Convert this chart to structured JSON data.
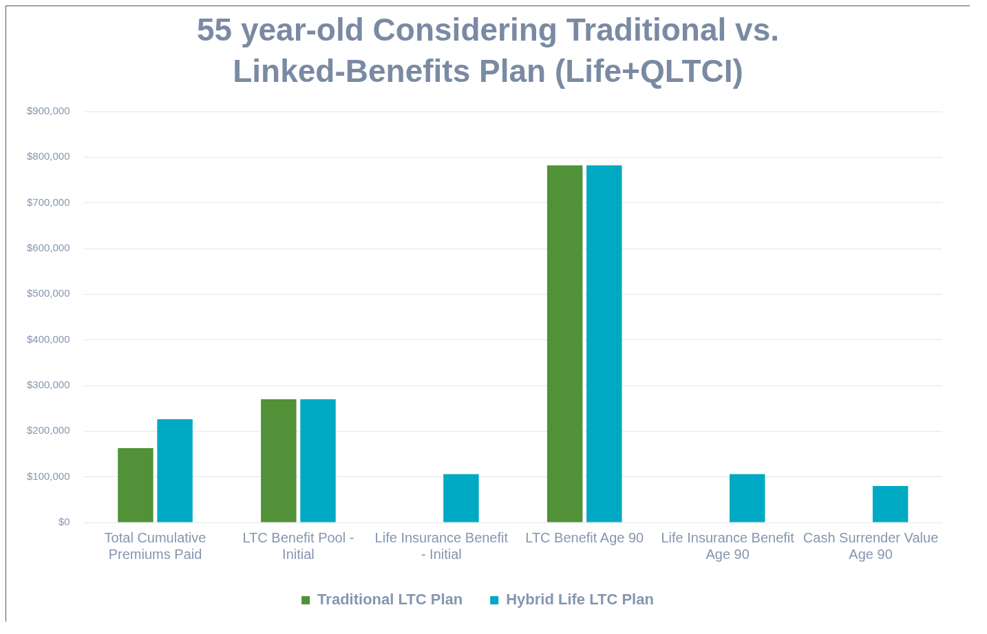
{
  "chart_data": {
    "type": "bar",
    "title": "55 year-old Considering Traditional vs. Linked-Benefits Plan (Life+QLTCI)",
    "categories": [
      "Total Cumulative Premiums Paid",
      "LTC Benefit Pool - Initial",
      "Life Insurance Benefit - Initial",
      "LTC Benefit Age 90",
      "Life Insurance Benefit Age 90",
      "Cash Surrender Value Age 90"
    ],
    "series": [
      {
        "name": "Traditional LTC Plan",
        "color": "#519138",
        "values": [
          163000,
          270000,
          null,
          782000,
          null,
          null
        ]
      },
      {
        "name": "Hybrid Life LTC Plan",
        "color": "#00a9c3",
        "values": [
          226000,
          270000,
          106000,
          782000,
          106000,
          80000
        ]
      }
    ],
    "ylim": [
      0,
      900000
    ],
    "yticks": [
      {
        "value": 0,
        "label": "$0"
      },
      {
        "value": 100000,
        "label": "$100,000"
      },
      {
        "value": 200000,
        "label": "$200,000"
      },
      {
        "value": 300000,
        "label": "$300,000"
      },
      {
        "value": 400000,
        "label": "$400,000"
      },
      {
        "value": 500000,
        "label": "$500,000"
      },
      {
        "value": 600000,
        "label": "$600,000"
      },
      {
        "value": 700000,
        "label": "$700,000"
      },
      {
        "value": 800000,
        "label": "$800,000"
      },
      {
        "value": 900000,
        "label": "$900,000"
      }
    ],
    "grid": "y",
    "legend": "bottom"
  }
}
